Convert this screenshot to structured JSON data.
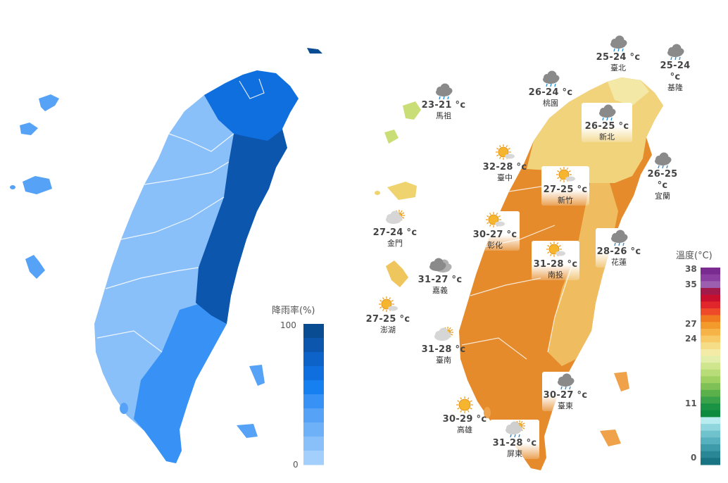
{
  "rain_legend": {
    "title": "降雨率(%)",
    "max_label": "100",
    "min_label": "0",
    "colors": [
      "#0a4c91",
      "#0d56ad",
      "#0e63c9",
      "#0f6fde",
      "#1680f0",
      "#3892f5",
      "#56a2f6",
      "#6fb1f8",
      "#8ac0fa",
      "#a3cffc"
    ]
  },
  "temp_legend": {
    "title": "溫度(°C)",
    "ticks": [
      "38",
      "35",
      "27",
      "24",
      "11",
      "0"
    ]
  },
  "rain_regions": {
    "north_tip": "#0f6fde",
    "east": "#0d56ad",
    "south": "#3892f5",
    "west": "#8ac0fa",
    "islands": "#56a2f6"
  },
  "cities": [
    {
      "name": "臺北",
      "temp": "25-24 °c",
      "icon": "rain-cloud-icon"
    },
    {
      "name": "基隆",
      "temp": "25-24 °c",
      "icon": "rain-cloud-icon"
    },
    {
      "name": "桃園",
      "temp": "26-24 °c",
      "icon": "rain-cloud-icon"
    },
    {
      "name": "馬祖",
      "temp": "23-21 °c",
      "icon": "rain-cloud-icon"
    },
    {
      "name": "新北",
      "temp": "26-25 °c",
      "icon": "rain-cloud-icon"
    },
    {
      "name": "宜蘭",
      "temp": "26-25 °c",
      "icon": "rain-cloud-icon"
    },
    {
      "name": "臺中",
      "temp": "32-28 °c",
      "icon": "sun-cloud-icon"
    },
    {
      "name": "新竹",
      "temp": "27-25 °c",
      "icon": "sun-cloud-icon"
    },
    {
      "name": "金門",
      "temp": "27-24 °c",
      "icon": "cloud-sun-icon"
    },
    {
      "name": "彰化",
      "temp": "30-27 °c",
      "icon": "sun-cloud-icon"
    },
    {
      "name": "南投",
      "temp": "31-28 °c",
      "icon": "sun-cloud-icon"
    },
    {
      "name": "花蓮",
      "temp": "28-26 °c",
      "icon": "rain-cloud-icon"
    },
    {
      "name": "嘉義",
      "temp": "31-27 °c",
      "icon": "cloud-icon"
    },
    {
      "name": "澎湖",
      "temp": "27-25 °c",
      "icon": "sun-cloud-icon"
    },
    {
      "name": "臺南",
      "temp": "31-28 °c",
      "icon": "cloud-sun-icon"
    },
    {
      "name": "臺東",
      "temp": "30-27 °c",
      "icon": "rain-cloud-icon"
    },
    {
      "name": "高雄",
      "temp": "30-29 °c",
      "icon": "sun-icon"
    },
    {
      "name": "屏東",
      "temp": "31-28 °c",
      "icon": "rain-sun-icon"
    }
  ]
}
